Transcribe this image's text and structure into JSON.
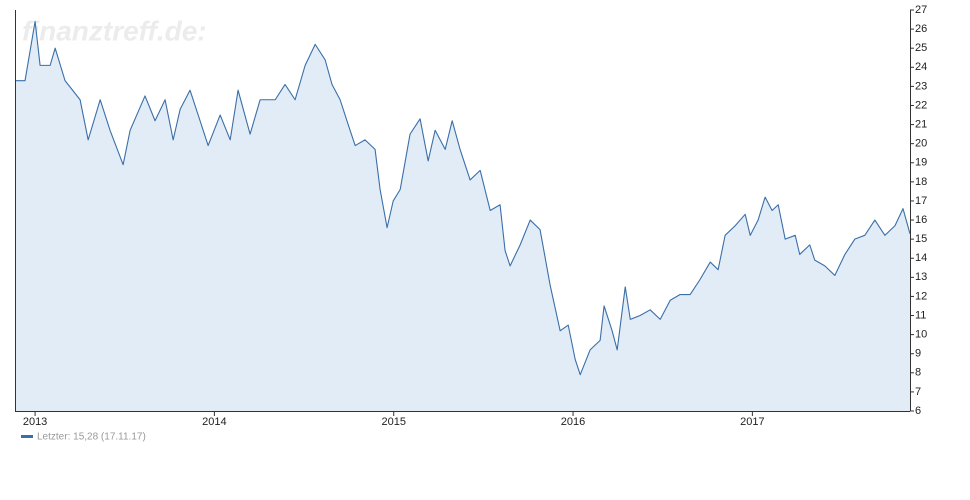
{
  "chart_data": {
    "type": "area",
    "watermark": "finanztreff.de:",
    "x": [
      2012.888,
      2012.944,
      2013.0,
      2013.028,
      2013.084,
      2013.112,
      2013.167,
      2013.251,
      2013.296,
      2013.363,
      2013.418,
      2013.491,
      2013.53,
      2013.613,
      2013.669,
      2013.725,
      2013.77,
      2013.809,
      2013.864,
      2013.92,
      2013.965,
      2014.032,
      2014.088,
      2014.132,
      2014.199,
      2014.255,
      2014.339,
      2014.394,
      2014.45,
      2014.506,
      2014.562,
      2014.617,
      2014.656,
      2014.701,
      2014.746,
      2014.785,
      2014.84,
      2014.896,
      2014.924,
      2014.963,
      2014.997,
      2015.036,
      2015.091,
      2015.147,
      2015.192,
      2015.231,
      2015.287,
      2015.326,
      2015.37,
      2015.426,
      2015.482,
      2015.538,
      2015.593,
      2015.621,
      2015.649,
      2015.705,
      2015.761,
      2015.816,
      2015.872,
      2015.928,
      2015.973,
      2016.012,
      2016.04,
      2016.095,
      2016.151,
      2016.173,
      2016.218,
      2016.246,
      2016.291,
      2016.319,
      2016.374,
      2016.43,
      2016.486,
      2016.542,
      2016.597,
      2016.653,
      2016.709,
      2016.765,
      2016.809,
      2016.848,
      2016.904,
      2016.96,
      2016.988,
      2017.032,
      2017.071,
      2017.11,
      2017.144,
      2017.183,
      2017.239,
      2017.264,
      2017.32,
      2017.348,
      2017.404,
      2017.46,
      2017.516,
      2017.571,
      2017.627,
      2017.683,
      2017.739,
      2017.795,
      2017.84,
      2017.879
    ],
    "series": [
      {
        "name": "Letzter: 15,28 (17.11.17)",
        "color": "#3a6fa8",
        "fill": "#e2ecf7",
        "values": [
          23.3,
          23.3,
          26.4,
          24.1,
          24.1,
          25.0,
          23.3,
          22.3,
          20.2,
          22.3,
          20.7,
          18.9,
          20.7,
          22.5,
          21.2,
          22.3,
          20.2,
          21.8,
          22.8,
          21.2,
          19.9,
          21.5,
          20.2,
          22.8,
          20.5,
          22.3,
          22.3,
          23.1,
          22.3,
          24.1,
          25.2,
          24.4,
          23.1,
          22.3,
          21.0,
          19.9,
          20.2,
          19.7,
          17.6,
          15.6,
          17.0,
          17.6,
          20.5,
          21.3,
          19.1,
          20.7,
          19.7,
          21.2,
          19.7,
          18.1,
          18.6,
          16.5,
          16.8,
          14.4,
          13.6,
          14.7,
          16.0,
          15.5,
          12.6,
          10.2,
          10.5,
          8.7,
          7.9,
          9.2,
          9.7,
          11.5,
          10.2,
          9.2,
          12.5,
          10.8,
          11.0,
          11.3,
          10.8,
          11.8,
          12.1,
          12.1,
          12.9,
          13.8,
          13.4,
          15.2,
          15.7,
          16.3,
          15.2,
          16.0,
          17.2,
          16.5,
          16.8,
          15.0,
          15.2,
          14.2,
          14.7,
          13.9,
          13.6,
          13.1,
          14.2,
          15.0,
          15.2,
          16.0,
          15.2,
          15.7,
          16.6,
          15.28
        ]
      }
    ],
    "xlim": [
      2012.888,
      2017.879
    ],
    "xticks": [
      2013,
      2014,
      2015,
      2016,
      2017
    ],
    "ylim": [
      6,
      27
    ],
    "yticks": [
      6,
      7,
      8,
      9,
      10,
      11,
      12,
      13,
      14,
      15,
      16,
      17,
      18,
      19,
      20,
      21,
      22,
      23,
      24,
      25,
      26,
      27
    ],
    "y_axis_side": "right"
  }
}
